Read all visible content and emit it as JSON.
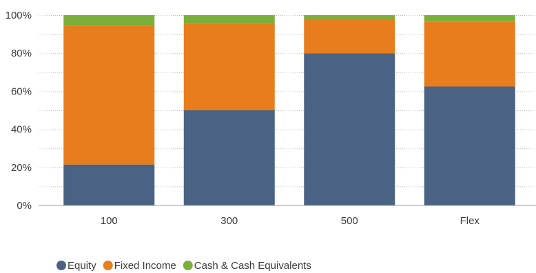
{
  "chart_data": {
    "type": "bar",
    "stacked": true,
    "categories": [
      "100",
      "300",
      "500",
      "Flex"
    ],
    "series": [
      {
        "name": "Equity",
        "color": "#4a6283",
        "values": [
          21.5,
          50,
          80,
          62.5
        ]
      },
      {
        "name": "Fixed Income",
        "color": "#e87d1e",
        "values": [
          73,
          45.5,
          18,
          34
        ]
      },
      {
        "name": "Cash & Cash Equivalents",
        "color": "#7ab03a",
        "values": [
          5.5,
          4.5,
          2,
          3.5
        ]
      }
    ],
    "ylim": [
      0,
      100
    ],
    "y_ticks": [
      "0%",
      "20%",
      "40%",
      "60%",
      "80%",
      "100%"
    ],
    "y_tick_values": [
      0,
      20,
      40,
      60,
      80,
      100
    ],
    "grid": "dotted horizontal",
    "legend_position": "bottom-left"
  }
}
